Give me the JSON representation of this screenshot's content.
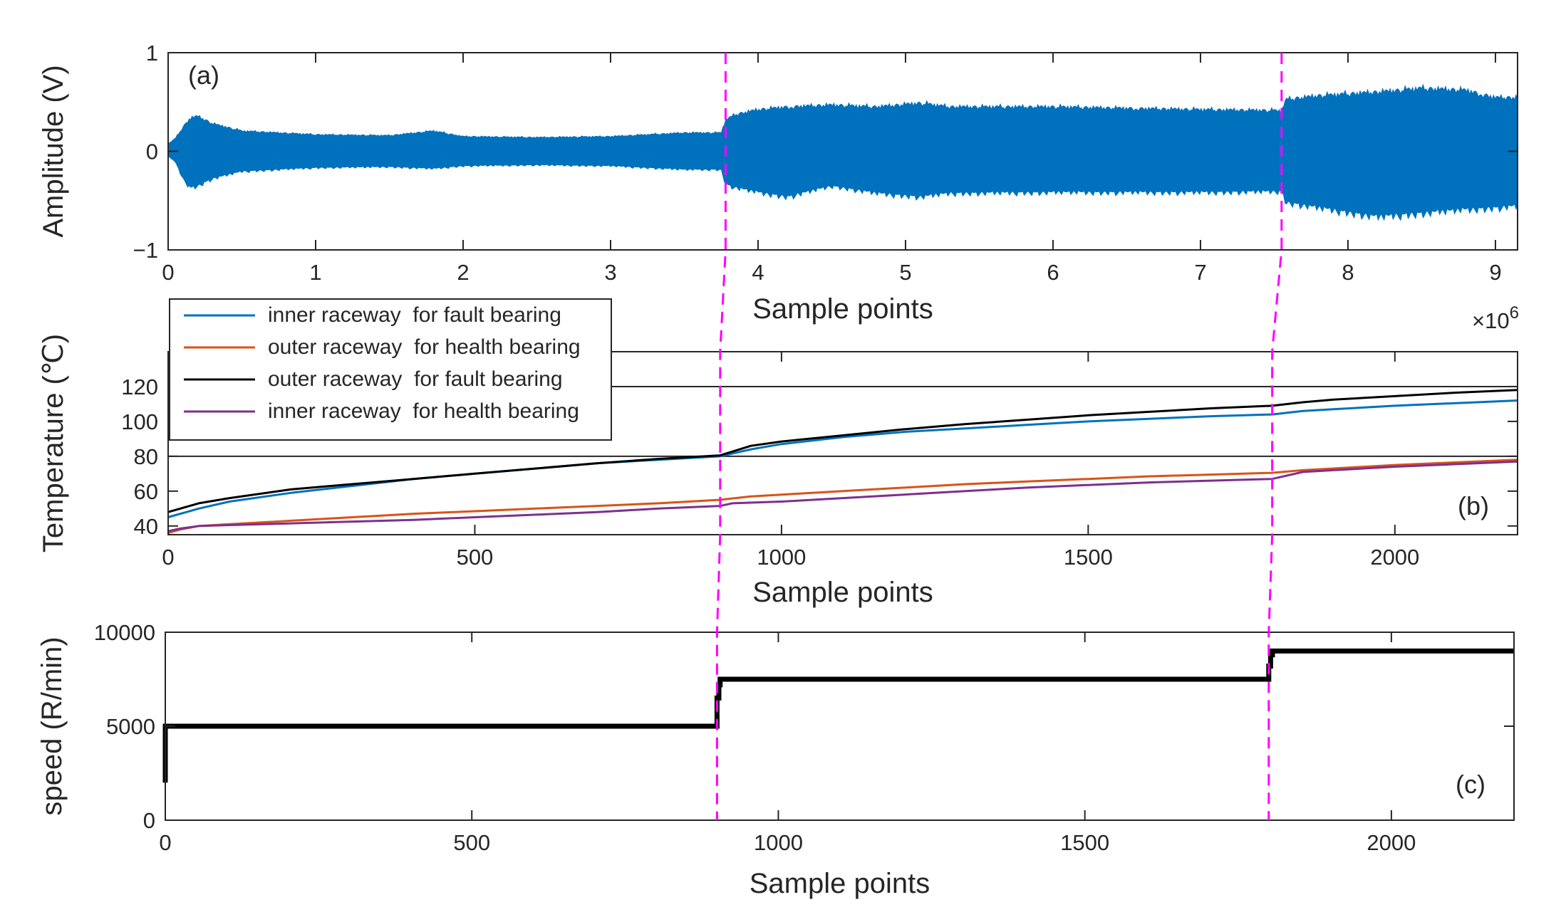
{
  "colors": {
    "vibration": "#0072BD",
    "inner_fault": "#0072BD",
    "outer_health": "#D95319",
    "outer_fault": "#000000",
    "inner_health": "#7E2F8E",
    "speed": "#000000",
    "stage_marker": "#FF00FF"
  },
  "chart_data": [
    {
      "id": "a",
      "type": "area",
      "panel_label": "(a)",
      "xlabel": "Sample points",
      "ylabel": "Amplitude (V)",
      "x_exponent_label": "×10",
      "x_exponent_power": "6",
      "xlim": [
        0,
        9.15
      ],
      "ylim": [
        -1,
        1
      ],
      "xticks": [
        0,
        1,
        2,
        3,
        4,
        5,
        6,
        7,
        8,
        9
      ],
      "yticks": [
        -1,
        0,
        1
      ],
      "xtick_labels": [
        "0",
        "1",
        "2",
        "3",
        "4",
        "5",
        "6",
        "7",
        "8",
        "9"
      ],
      "ytick_labels": [
        "−1",
        "0",
        "1"
      ],
      "series": [
        {
          "color_key": "vibration",
          "envelope_x": [
            0,
            0.05,
            0.1,
            0.15,
            0.2,
            0.3,
            0.5,
            1.0,
            1.5,
            1.8,
            2.0,
            2.5,
            3.0,
            3.5,
            3.75,
            3.78,
            3.85,
            4.0,
            4.2,
            4.5,
            4.8,
            5.1,
            5.3,
            6.0,
            7.0,
            7.55,
            7.58,
            7.8,
            8.2,
            8.5,
            8.8,
            9.0,
            9.15
          ],
          "envelope_upper": [
            0.08,
            0.14,
            0.26,
            0.36,
            0.38,
            0.3,
            0.22,
            0.18,
            0.17,
            0.22,
            0.16,
            0.15,
            0.16,
            0.2,
            0.2,
            0.34,
            0.4,
            0.45,
            0.48,
            0.5,
            0.48,
            0.52,
            0.48,
            0.48,
            0.45,
            0.44,
            0.56,
            0.6,
            0.64,
            0.68,
            0.66,
            0.58,
            0.58
          ],
          "envelope_lower": [
            -0.05,
            -0.12,
            -0.3,
            -0.4,
            -0.38,
            -0.3,
            -0.22,
            -0.18,
            -0.17,
            -0.19,
            -0.16,
            -0.15,
            -0.16,
            -0.2,
            -0.2,
            -0.36,
            -0.4,
            -0.45,
            -0.5,
            -0.38,
            -0.46,
            -0.5,
            -0.46,
            -0.45,
            -0.45,
            -0.44,
            -0.56,
            -0.62,
            -0.72,
            -0.68,
            -0.64,
            -0.62,
            -0.6
          ]
        }
      ]
    },
    {
      "id": "b",
      "type": "line",
      "panel_label": "(b)",
      "xlabel": "Sample points",
      "ylabel": "Temperature (℃)",
      "xlim": [
        0,
        2200
      ],
      "ylim": [
        35,
        140
      ],
      "xticks": [
        0,
        500,
        1000,
        1500,
        2000
      ],
      "yticks": [
        40,
        60,
        80,
        100,
        120
      ],
      "xtick_labels": [
        "0",
        "500",
        "1000",
        "1500",
        "2000"
      ],
      "ytick_labels": [
        "40",
        "60",
        "80",
        "100",
        "120"
      ],
      "legend_position": "top-left",
      "series": [
        {
          "name": "inner raceway  for fault bearing",
          "color_key": "inner_fault",
          "x": [
            0,
            50,
            100,
            200,
            300,
            400,
            500,
            600,
            700,
            800,
            900,
            950,
            1000,
            1100,
            1200,
            1300,
            1400,
            1500,
            1600,
            1700,
            1800,
            1850,
            1900,
            2000,
            2100,
            2200
          ],
          "y": [
            45,
            50,
            54,
            59,
            63,
            67,
            70,
            73,
            76,
            78,
            80,
            84,
            87,
            91,
            94,
            96,
            98,
            100,
            101.5,
            103,
            104,
            106,
            107,
            109,
            110.5,
            112
          ]
        },
        {
          "name": "outer raceway  for health bearing",
          "color_key": "outer_health",
          "x": [
            0,
            20,
            50,
            100,
            200,
            300,
            400,
            500,
            600,
            700,
            800,
            900,
            950,
            1000,
            1100,
            1200,
            1300,
            1400,
            1500,
            1600,
            1700,
            1800,
            1850,
            1900,
            2000,
            2100,
            2200
          ],
          "y": [
            36,
            38,
            40,
            41,
            43,
            45,
            47,
            48.5,
            50,
            51.5,
            53,
            55,
            57,
            58,
            60,
            62,
            64,
            65.5,
            67,
            68.5,
            69.5,
            70.5,
            72,
            73,
            75,
            76.5,
            78
          ]
        },
        {
          "name": "outer raceway  for fault bearing",
          "color_key": "outer_fault",
          "x": [
            0,
            50,
            100,
            200,
            300,
            400,
            500,
            600,
            700,
            800,
            900,
            950,
            1000,
            1100,
            1200,
            1300,
            1400,
            1500,
            1600,
            1700,
            1800,
            1850,
            1900,
            2000,
            2100,
            2200
          ],
          "y": [
            48,
            53,
            56,
            61,
            64,
            67,
            70,
            73,
            76,
            78.5,
            80.5,
            86,
            88.5,
            92,
            95.5,
            98.5,
            101,
            103.5,
            105.5,
            107.5,
            109,
            111,
            112.5,
            114.5,
            116.5,
            118
          ]
        },
        {
          "name": "inner raceway  for health bearing",
          "color_key": "inner_health",
          "x": [
            0,
            20,
            50,
            100,
            200,
            300,
            400,
            500,
            600,
            700,
            800,
            900,
            920,
            1000,
            1100,
            1200,
            1300,
            1400,
            1500,
            1600,
            1700,
            1800,
            1850,
            1900,
            2000,
            2100,
            2200
          ],
          "y": [
            37,
            38.5,
            40,
            40.5,
            41.5,
            42.5,
            43.5,
            45,
            46.5,
            48,
            50,
            51.5,
            53,
            54,
            56,
            58,
            60,
            62,
            63.5,
            65,
            66,
            67,
            71,
            72,
            74,
            75.5,
            77
          ]
        }
      ]
    },
    {
      "id": "c",
      "type": "line",
      "panel_label": "(c)",
      "xlabel": "Sample points",
      "ylabel": "speed (R/min)",
      "xlim": [
        0,
        2200
      ],
      "ylim": [
        0,
        10000
      ],
      "xticks": [
        0,
        500,
        1000,
        1500,
        2000
      ],
      "yticks": [
        0,
        5000,
        10000
      ],
      "xtick_labels": [
        "0",
        "500",
        "1000",
        "1500",
        "2000"
      ],
      "ytick_labels": [
        "0",
        "5000",
        "10000"
      ],
      "series": [
        {
          "color_key": "speed",
          "x": [
            0,
            0,
            900,
            900,
            903,
            903,
            905,
            905,
            1800,
            1800,
            1803,
            1803,
            1806,
            1806,
            2200
          ],
          "y": [
            2000,
            5000,
            5000,
            6500,
            6500,
            7200,
            7200,
            7500,
            7500,
            8200,
            8200,
            8800,
            8800,
            9000,
            9000
          ]
        }
      ]
    }
  ],
  "stage_markers": [
    {
      "a_x": 3.78,
      "b_x": 900,
      "c_x": 900
    },
    {
      "a_x": 7.55,
      "b_x": 1800,
      "c_x": 1800
    }
  ]
}
